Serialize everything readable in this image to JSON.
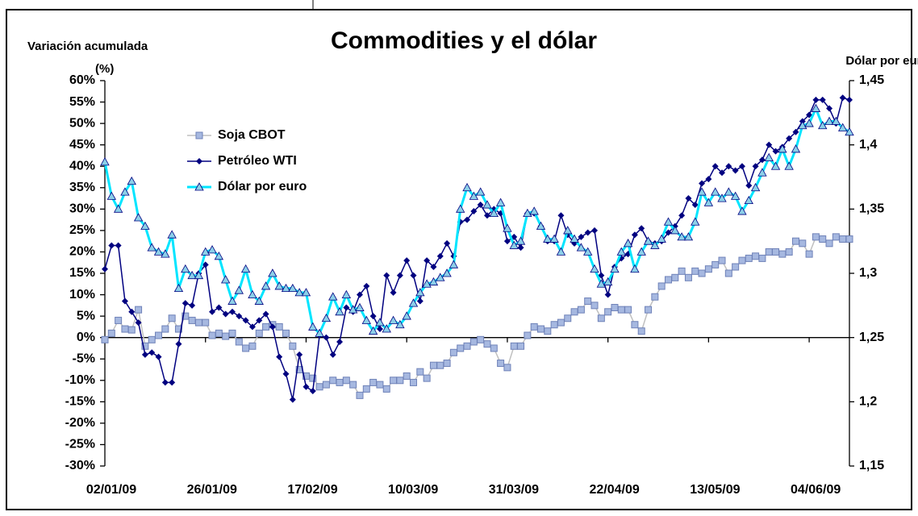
{
  "chart_data": {
    "type": "line",
    "title": "Commodities y el dólar",
    "ylabel": "Variación acumulada",
    "ylabel_unit": "(%)",
    "y2label": "Dólar por euro",
    "categories": [
      "02/01/09",
      null,
      null,
      null,
      null,
      null,
      null,
      null,
      null,
      null,
      null,
      null,
      null,
      null,
      null,
      "26/01/09",
      null,
      null,
      null,
      null,
      null,
      null,
      null,
      null,
      null,
      null,
      null,
      null,
      null,
      null,
      "17/02/09",
      null,
      null,
      null,
      null,
      null,
      null,
      null,
      null,
      null,
      null,
      null,
      null,
      null,
      null,
      "10/03/09",
      null,
      null,
      null,
      null,
      null,
      null,
      null,
      null,
      null,
      null,
      null,
      null,
      null,
      null,
      "31/03/09",
      null,
      null,
      null,
      null,
      null,
      null,
      null,
      null,
      null,
      null,
      null,
      null,
      null,
      null,
      "22/04/09",
      null,
      null,
      null,
      null,
      null,
      null,
      null,
      null,
      null,
      null,
      null,
      null,
      null,
      null,
      "13/05/09",
      null,
      null,
      null,
      null,
      null,
      null,
      null,
      null,
      null,
      null,
      null,
      null,
      null,
      null,
      "04/06/09",
      null,
      null,
      null,
      null,
      null,
      null
    ],
    "series": [
      {
        "name": "Soja CBOT",
        "color": "#a6b8e0",
        "marker": "square",
        "values": [
          -0.5,
          1,
          4,
          2,
          1.8,
          6.5,
          -2,
          -0.5,
          0.5,
          2,
          4.5,
          2,
          5,
          4,
          3.5,
          3.5,
          0.5,
          1,
          0.3,
          1,
          -1,
          -2.5,
          -2,
          1,
          2.5,
          3,
          2.5,
          1,
          -2,
          -7.5,
          -9,
          -9.5,
          -11.5,
          -11,
          -10,
          -10.5,
          -10,
          -11,
          -13.5,
          -12,
          -10.5,
          -11,
          -12,
          -10,
          -10,
          -9,
          -10.5,
          -8,
          -9.5,
          -6.5,
          -6.5,
          -6,
          -3.5,
          -2.5,
          -2,
          -1,
          -0.5,
          -1.5,
          -2.5,
          -6,
          -7,
          -2,
          -2,
          0.5,
          2.5,
          2,
          1.5,
          3,
          3.5,
          4.5,
          6,
          6.5,
          8.5,
          7.5,
          4.5,
          6,
          7,
          6.5,
          6.5,
          3,
          1.5,
          6.5,
          9.5,
          12,
          13.5,
          14,
          15.5,
          14,
          15.5,
          15,
          16,
          17,
          18,
          15,
          16.5,
          18,
          18.5,
          19,
          18.5,
          20,
          20,
          19.5,
          20,
          22.5,
          22,
          19.5,
          23.5,
          23,
          22,
          23.5,
          23,
          23
        ]
      },
      {
        "name": "Petróleo WTI",
        "color": "#000080",
        "marker": "diamond",
        "values": [
          16,
          21.5,
          21.5,
          8.5,
          6,
          3.5,
          -4,
          -3.5,
          -4.5,
          -10.5,
          -10.5,
          -1.5,
          8,
          7.5,
          15,
          17,
          6,
          7,
          5.5,
          6,
          5,
          4,
          2.5,
          4,
          5.5,
          2.5,
          -4.5,
          -8.5,
          -14.5,
          -4,
          -11.5,
          -12.5,
          0.5,
          0,
          -4,
          -1,
          7,
          6,
          10,
          12,
          5,
          2,
          14.5,
          10.5,
          14.5,
          18,
          14.5,
          8.5,
          18,
          16.5,
          19,
          22,
          19,
          27,
          27.5,
          29.5,
          31,
          28.5,
          30,
          29,
          22.5,
          23.5,
          21,
          29,
          29,
          26,
          22.5,
          22.5,
          28.5,
          24,
          22,
          23.5,
          24.5,
          25,
          14.5,
          10,
          16.5,
          18.5,
          19.5,
          24,
          25.5,
          22.5,
          22,
          22.5,
          24.5,
          26,
          28.5,
          32.5,
          31,
          36,
          37,
          40,
          38.5,
          40,
          39,
          40,
          35.5,
          40,
          41.5,
          45,
          43.5,
          44.5,
          46.5,
          48,
          50.5,
          52,
          55.5,
          55.5,
          53.5,
          50,
          56,
          55.5
        ]
      },
      {
        "name": "Dólar por euro",
        "color": "#00e5ff",
        "marker": "triangle",
        "axis": "y2",
        "values": [
          1.3867,
          1.36,
          1.35,
          1.3633,
          1.3717,
          1.3433,
          1.3367,
          1.32,
          1.3167,
          1.315,
          1.33,
          1.2883,
          1.3033,
          1.2983,
          1.2983,
          1.3167,
          1.3183,
          1.3133,
          1.295,
          1.2783,
          1.2867,
          1.3033,
          1.2833,
          1.2783,
          1.29,
          1.3,
          1.29,
          1.2883,
          1.2883,
          1.285,
          1.285,
          1.2583,
          1.2533,
          1.265,
          1.2817,
          1.27,
          1.2833,
          1.2717,
          1.2733,
          1.2633,
          1.255,
          1.2617,
          1.2567,
          1.2633,
          1.26,
          1.2667,
          1.2767,
          1.285,
          1.2917,
          1.2933,
          1.2967,
          1.3,
          1.3067,
          1.35,
          1.3667,
          1.36,
          1.3633,
          1.3533,
          1.3467,
          1.355,
          1.335,
          1.3217,
          1.325,
          1.3467,
          1.3483,
          1.3367,
          1.3267,
          1.3267,
          1.3167,
          1.3333,
          1.3267,
          1.32,
          1.3167,
          1.3033,
          1.2917,
          1.2933,
          1.3033,
          1.3167,
          1.3233,
          1.3033,
          1.3167,
          1.325,
          1.3217,
          1.3267,
          1.34,
          1.3333,
          1.3283,
          1.3283,
          1.34,
          1.3633,
          1.355,
          1.3633,
          1.3583,
          1.3633,
          1.36,
          1.3483,
          1.3567,
          1.3667,
          1.3783,
          1.39,
          1.3833,
          1.3967,
          1.3833,
          1.3967,
          1.415,
          1.4167,
          1.4283,
          1.415,
          1.4183,
          1.4183,
          1.4133,
          1.41
        ]
      }
    ],
    "ylim": [
      -30,
      60
    ],
    "yticks": [
      {
        "value": -30,
        "label": "-30%"
      },
      {
        "value": -25,
        "label": "-25%"
      },
      {
        "value": -20,
        "label": "-20%"
      },
      {
        "value": -15,
        "label": "-15%"
      },
      {
        "value": -10,
        "label": "-10%"
      },
      {
        "value": -5,
        "label": "-5%"
      },
      {
        "value": 0,
        "label": "0%"
      },
      {
        "value": 5,
        "label": "5%"
      },
      {
        "value": 10,
        "label": "10%"
      },
      {
        "value": 15,
        "label": "15%"
      },
      {
        "value": 20,
        "label": "20%"
      },
      {
        "value": 25,
        "label": "25%"
      },
      {
        "value": 30,
        "label": "30%"
      },
      {
        "value": 35,
        "label": "35%"
      },
      {
        "value": 40,
        "label": "40%"
      },
      {
        "value": 45,
        "label": "45%"
      },
      {
        "value": 50,
        "label": "50%"
      },
      {
        "value": 55,
        "label": "55%"
      },
      {
        "value": 60,
        "label": "60%"
      }
    ],
    "y2lim": [
      1.15,
      1.45
    ],
    "y2ticks": [
      {
        "value": 1.15,
        "label": "1,15"
      },
      {
        "value": 1.2,
        "label": "1,2"
      },
      {
        "value": 1.25,
        "label": "1,25"
      },
      {
        "value": 1.3,
        "label": "1,3"
      },
      {
        "value": 1.35,
        "label": "1,35"
      },
      {
        "value": 1.4,
        "label": "1,4"
      },
      {
        "value": 1.45,
        "label": "1,45"
      }
    ],
    "grid": false,
    "legend": "upper left"
  }
}
